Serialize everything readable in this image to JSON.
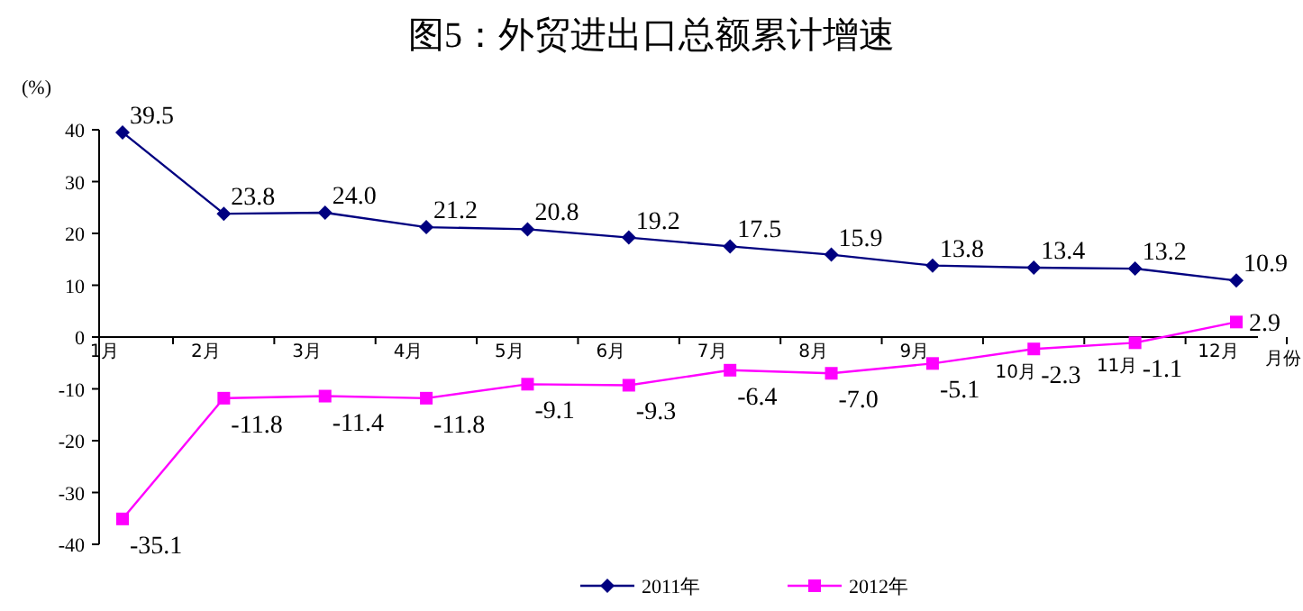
{
  "chart_data": {
    "type": "line",
    "title": "图5：外贸进出口总额累计增速",
    "ylabel": "(%)",
    "xlabel": "月份",
    "categories": [
      "1月",
      "2月",
      "3月",
      "4月",
      "5月",
      "6月",
      "7月",
      "8月",
      "9月",
      "10月",
      "11月",
      "12月"
    ],
    "series": [
      {
        "name": "2011年",
        "color": "#000080",
        "marker": "diamond",
        "values": [
          39.5,
          23.8,
          24.0,
          21.2,
          20.8,
          19.2,
          17.5,
          15.9,
          13.8,
          13.4,
          13.2,
          10.9
        ],
        "value_labels": [
          "39.5",
          "23.8",
          "24.0",
          "21.2",
          "20.8",
          "19.2",
          "17.5",
          "15.9",
          "13.8",
          "13.4",
          "13.2",
          "10.9"
        ]
      },
      {
        "name": "2012年",
        "color": "#ff00ff",
        "marker": "square",
        "values": [
          -35.1,
          -11.8,
          -11.4,
          -11.8,
          -9.1,
          -9.3,
          -6.4,
          -7.0,
          -5.1,
          -2.3,
          -1.1,
          2.9
        ],
        "value_labels": [
          "-35.1",
          "-11.8",
          "-11.4",
          "-11.8",
          "-9.1",
          "-9.3",
          "-6.4",
          "-7.0",
          "-5.1",
          "-2.3",
          "-1.1",
          "2.9"
        ]
      }
    ],
    "ylim": [
      -40,
      40
    ],
    "yticks": [
      -40,
      -30,
      -20,
      -10,
      0,
      10,
      20,
      30,
      40
    ],
    "legend": "bottom",
    "line_style": "solid"
  }
}
